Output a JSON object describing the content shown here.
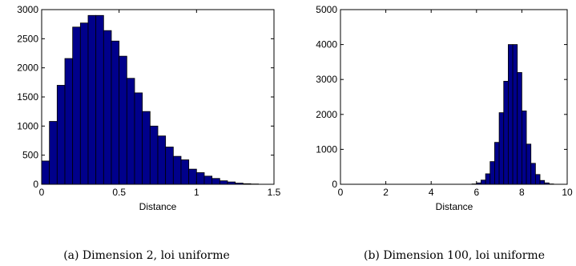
{
  "chart_data": [
    {
      "type": "bar",
      "caption": "(a) Dimension 2, loi uniforme",
      "xlabel": "Distance",
      "ylabel": "",
      "xlim": [
        0,
        1.5
      ],
      "ylim": [
        0,
        3000
      ],
      "xticks": [
        "0",
        "0.5",
        "1",
        "1.5"
      ],
      "yticks": [
        "0",
        "500",
        "1000",
        "1500",
        "2000",
        "2500",
        "3000"
      ],
      "grid": false,
      "bar_color": "#00008B",
      "bin_width": 0.05,
      "bin_starts": [
        0,
        0.05,
        0.1,
        0.15,
        0.2,
        0.25,
        0.3,
        0.35,
        0.4,
        0.45,
        0.5,
        0.55,
        0.6,
        0.65,
        0.7,
        0.75,
        0.8,
        0.85,
        0.9,
        0.95,
        1.0,
        1.05,
        1.1,
        1.15,
        1.2,
        1.25,
        1.3,
        1.35
      ],
      "values": [
        400,
        1080,
        1700,
        2160,
        2700,
        2770,
        2900,
        2900,
        2640,
        2460,
        2200,
        1820,
        1570,
        1250,
        1000,
        830,
        640,
        480,
        420,
        260,
        200,
        140,
        100,
        60,
        40,
        20,
        10,
        5
      ]
    },
    {
      "type": "bar",
      "caption": "(b) Dimension 100, loi uniforme",
      "xlabel": "Distance",
      "ylabel": "",
      "xlim": [
        0,
        10
      ],
      "ylim": [
        0,
        5000
      ],
      "xticks": [
        "0",
        "2",
        "4",
        "6",
        "8",
        "10"
      ],
      "yticks": [
        "0",
        "1000",
        "2000",
        "3000",
        "4000",
        "5000"
      ],
      "grid": false,
      "bar_color": "#00008B",
      "bin_width": 0.2,
      "bin_starts": [
        5.8,
        6.0,
        6.2,
        6.4,
        6.6,
        6.8,
        7.0,
        7.2,
        7.4,
        7.6,
        7.8,
        8.0,
        8.2,
        8.4,
        8.6,
        8.8,
        9.0,
        9.2
      ],
      "values": [
        10,
        40,
        120,
        300,
        650,
        1200,
        2050,
        2950,
        4000,
        4000,
        3200,
        2100,
        1150,
        600,
        280,
        110,
        40,
        10
      ]
    }
  ]
}
